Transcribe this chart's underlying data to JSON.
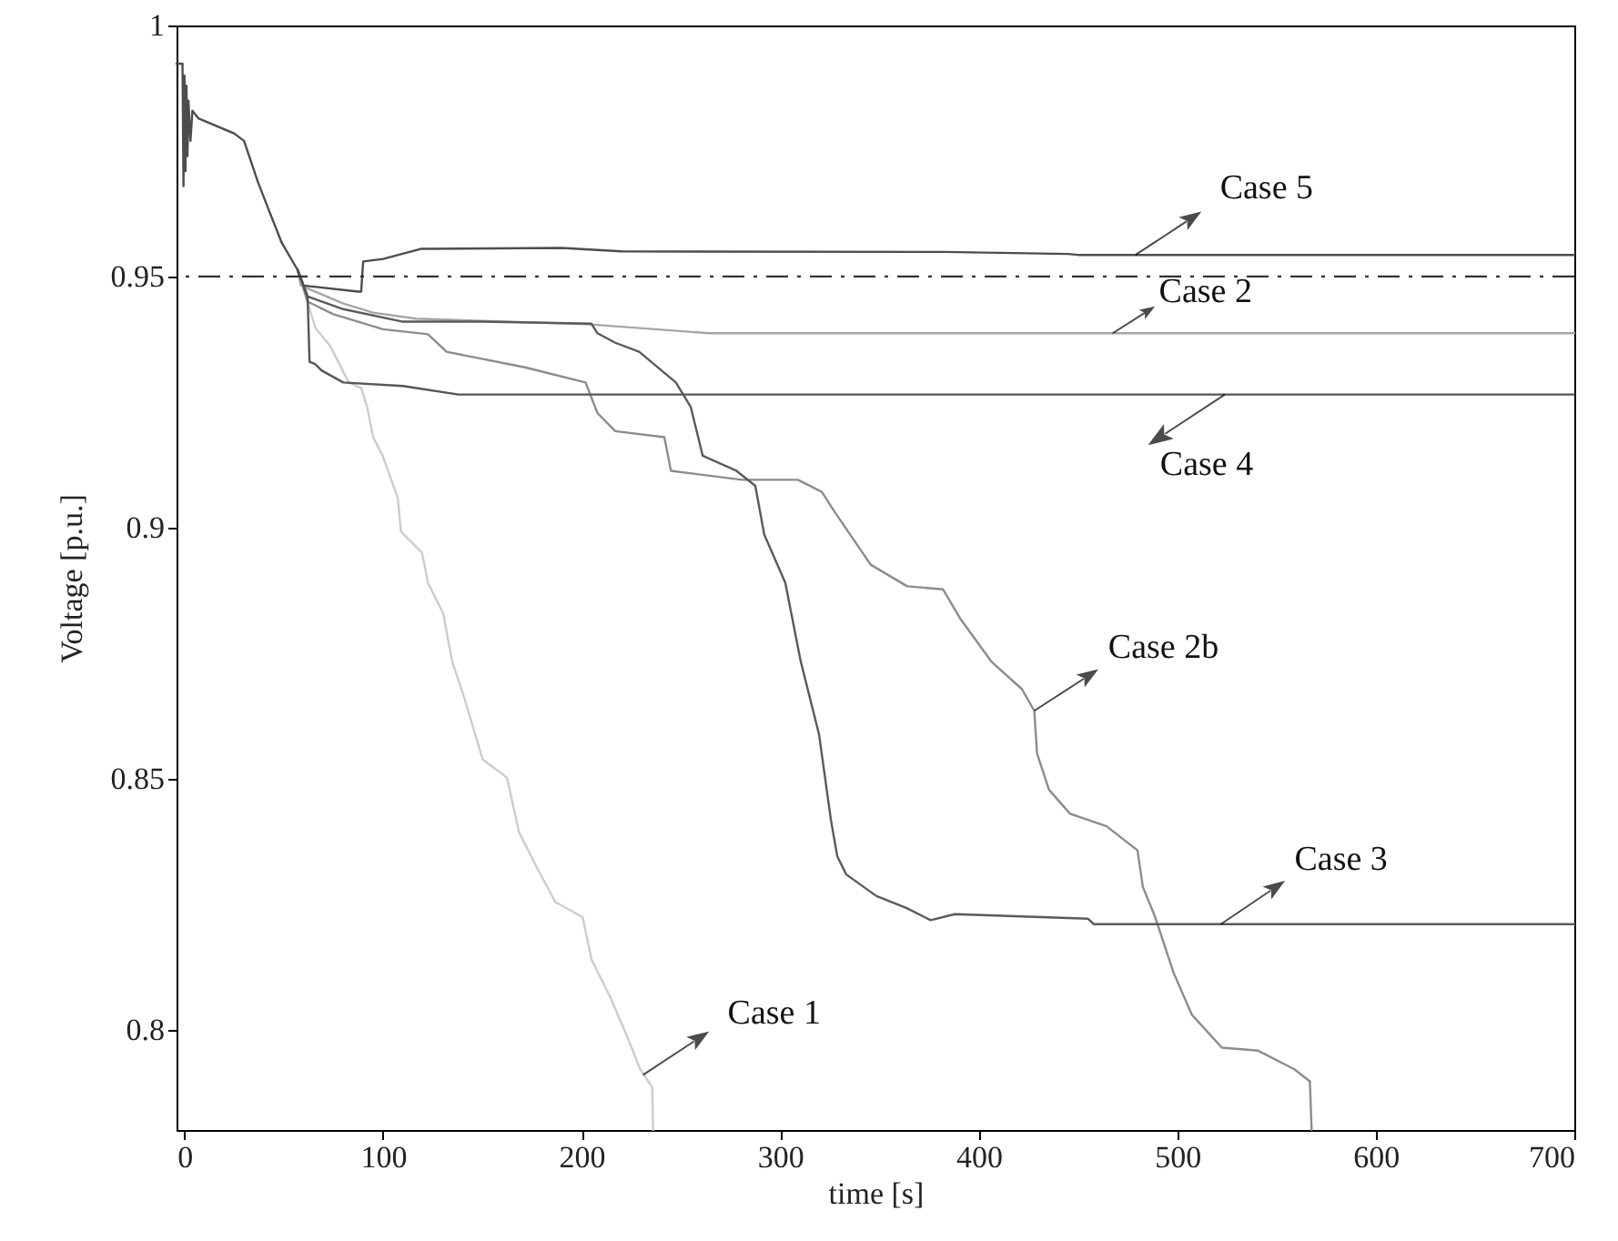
{
  "chart_data": {
    "type": "line",
    "xlabel": "time [s]",
    "ylabel": "Voltage [p.u.]",
    "xlim": [
      -4,
      700
    ],
    "ylim": [
      0.78,
      1
    ],
    "xticks": [
      0,
      100,
      200,
      300,
      400,
      500,
      600,
      700
    ],
    "yticks": [
      0.8,
      0.85,
      0.9,
      0.95,
      1
    ],
    "grid": false,
    "line_style": "solid",
    "marker": "none",
    "series": [
      {
        "color": "#cccccc",
        "x": [
          57,
          66,
          73.5,
          82.7,
          89,
          92,
          95,
          99.8,
          107.4,
          109,
          119.6,
          122.7,
          130.3,
          134.9,
          141,
          145.6,
          150.2,
          162.4,
          168.5,
          177.7,
          186.8,
          200.5,
          205.1,
          214.3,
          223.4,
          229.5,
          235.6,
          236
        ],
        "values": [
          0.9513,
          0.9397,
          0.9361,
          0.9289,
          0.9278,
          0.924,
          0.918,
          0.9143,
          0.9059,
          0.8992,
          0.895,
          0.8889,
          0.8829,
          0.8732,
          0.866,
          0.8599,
          0.8538,
          0.8502,
          0.8393,
          0.8321,
          0.8254,
          0.8224,
          0.8139,
          0.8066,
          0.7982,
          0.7921,
          0.7885,
          0.78
        ]
      },
      {
        "color": "#8c8c8c",
        "x": [
          57,
          62,
          75,
          100,
          122.6,
          132,
          171.5,
          202,
          208,
          217,
          241.7,
          245,
          281,
          309,
          321,
          327,
          345.6,
          364,
          382,
          391,
          406.6,
          421.8,
          428,
          429.4,
          435.4,
          446,
          464.4,
          480,
          482.7,
          488.9,
          498,
          507.3,
          522.5,
          540.8,
          559,
          566.8,
          567.7
        ],
        "values": [
          0.9513,
          0.945,
          0.9425,
          0.9395,
          0.9385,
          0.935,
          0.9319,
          0.9289,
          0.9228,
          0.9192,
          0.918,
          0.9113,
          0.9095,
          0.9095,
          0.9071,
          0.9034,
          0.8926,
          0.8883,
          0.8877,
          0.8817,
          0.8732,
          0.8678,
          0.8635,
          0.855,
          0.8478,
          0.843,
          0.8405,
          0.8357,
          0.8284,
          0.8224,
          0.8115,
          0.803,
          0.7964,
          0.7958,
          0.7921,
          0.7897,
          0.78
        ]
      },
      {
        "color": "#a6a6a6",
        "x": [
          57,
          58.6,
          80,
          95,
          116.5,
          203,
          264,
          700
        ],
        "values": [
          0.9513,
          0.9482,
          0.9446,
          0.9428,
          0.9416,
          0.9405,
          0.9387,
          0.9387
        ]
      },
      {
        "color": "#5a5a5a",
        "x": [
          57,
          62,
          80,
          110,
          150,
          205,
          208,
          217,
          229,
          247.5,
          255,
          261,
          278,
          287.5,
          292,
          302.6,
          310.4,
          319.6,
          325.6,
          328.8,
          333.3,
          348.5,
          363.8,
          375.8,
          388,
          455,
          458,
          700
        ],
        "values": [
          0.9513,
          0.946,
          0.9435,
          0.941,
          0.941,
          0.9406,
          0.9387,
          0.9368,
          0.935,
          0.9289,
          0.924,
          0.9143,
          0.9113,
          0.9083,
          0.8986,
          0.889,
          0.8733,
          0.8588,
          0.8417,
          0.8345,
          0.8309,
          0.8266,
          0.8242,
          0.8218,
          0.823,
          0.8221,
          0.821,
          0.821
        ]
      },
      {
        "color": "#555555",
        "x": [
          57,
          62,
          63,
          66,
          69,
          80,
          110,
          138,
          700
        ],
        "values": [
          0.9513,
          0.946,
          0.933,
          0.9325,
          0.9313,
          0.9289,
          0.9282,
          0.9265,
          0.9265
        ]
      },
      {
        "color": "#4d4d4d",
        "x": [
          -4,
          -1,
          -0.5,
          0,
          0.5,
          1,
          1.5,
          2,
          3,
          4,
          7,
          25,
          30,
          37,
          43,
          49,
          57,
          60,
          87.5,
          89,
          90,
          100,
          119,
          190,
          220,
          382,
          445,
          450,
          700
        ],
        "values": [
          0.9924,
          0.9924,
          0.968,
          0.99,
          0.971,
          0.988,
          0.974,
          0.985,
          0.977,
          0.983,
          0.9815,
          0.9785,
          0.977,
          0.9688,
          0.9627,
          0.9567,
          0.9513,
          0.9482,
          0.947,
          0.947,
          0.953,
          0.9535,
          0.9555,
          0.9557,
          0.955,
          0.9549,
          0.9545,
          0.9543,
          0.9543
        ]
      }
    ],
    "ref_lines": [
      {
        "axis": "y",
        "value": 0.95,
        "color": "#333333",
        "line_style": "dashdot"
      }
    ],
    "annotations": [
      {
        "text": "Case 5",
        "x": 479,
        "y": 0.9543
      },
      {
        "text": "Case 2",
        "x": 467.5,
        "y": 0.9387
      },
      {
        "text": "Case 4",
        "x": 524,
        "y": 0.9265
      },
      {
        "text": "Case 2b",
        "x": 428,
        "y": 0.8635
      },
      {
        "text": "Case 3",
        "x": 522,
        "y": 0.821
      },
      {
        "text": "Case 1",
        "x": 231,
        "y": 0.791
      }
    ]
  }
}
